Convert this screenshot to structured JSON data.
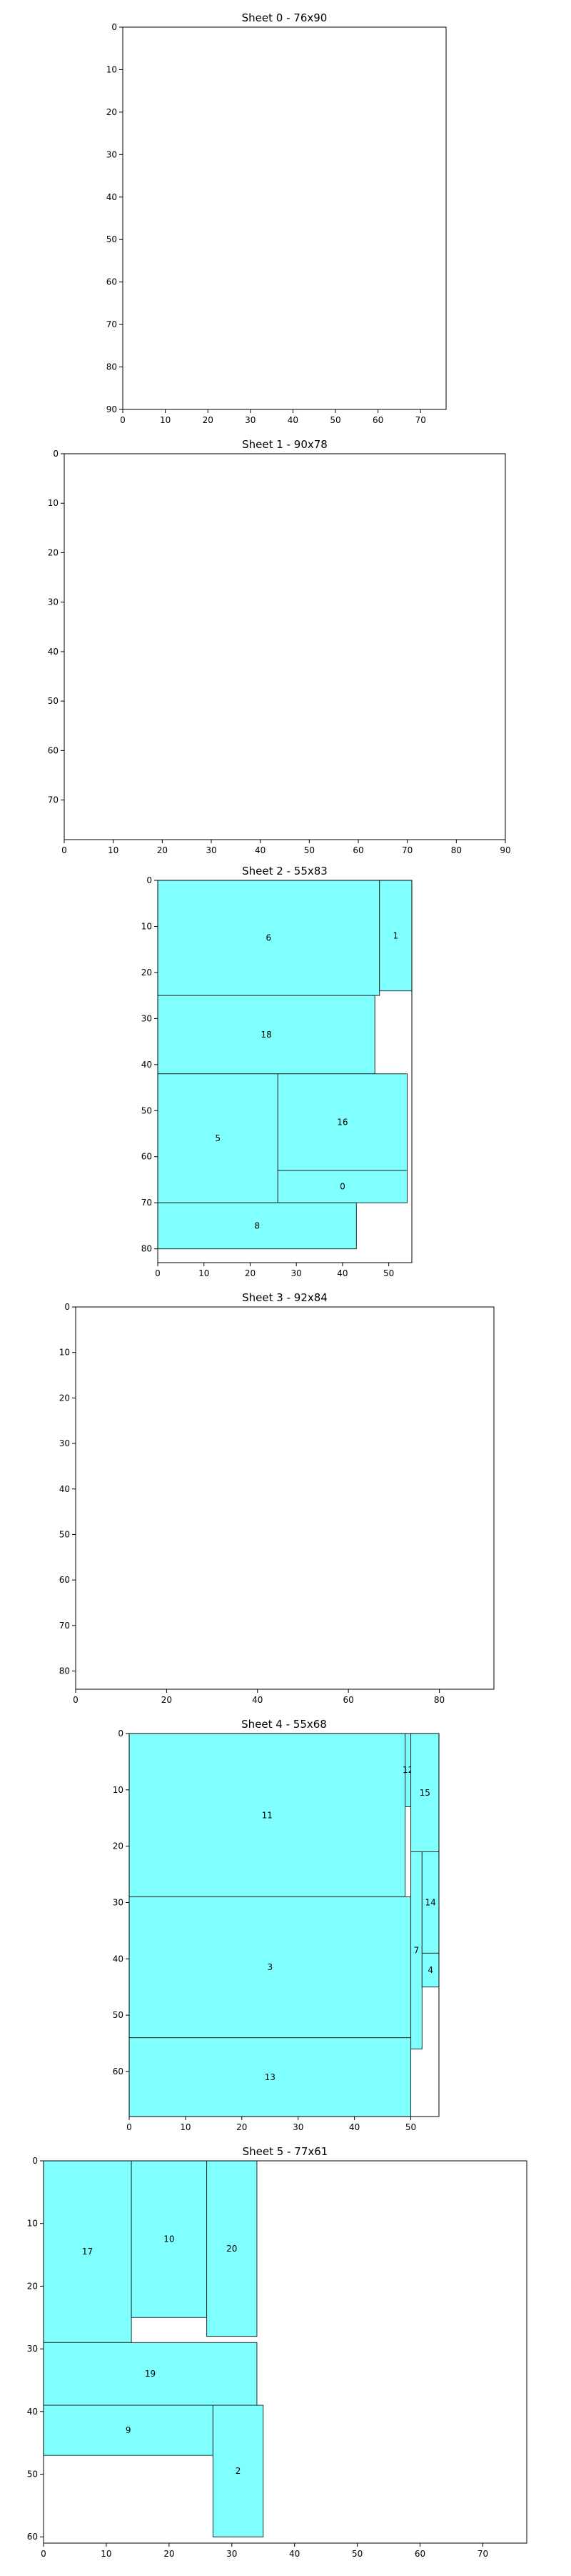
{
  "chart_data": [
    {
      "type": "rect-packing",
      "title": "Sheet 0 - 76x90",
      "sheet": {
        "width": 76,
        "height": 90
      },
      "xlim": [
        0,
        76
      ],
      "ylim": [
        0,
        90
      ],
      "y_inverted": true,
      "xticks": [
        0,
        10,
        20,
        30,
        40,
        50,
        60,
        70
      ],
      "yticks": [
        0,
        10,
        20,
        30,
        40,
        50,
        60,
        70,
        80,
        90
      ],
      "pieces": []
    },
    {
      "type": "rect-packing",
      "title": "Sheet 1 - 90x78",
      "sheet": {
        "width": 90,
        "height": 78
      },
      "xlim": [
        0,
        90
      ],
      "ylim": [
        0,
        78
      ],
      "y_inverted": true,
      "xticks": [
        0,
        10,
        20,
        30,
        40,
        50,
        60,
        70,
        80,
        90
      ],
      "yticks": [
        0,
        10,
        20,
        30,
        40,
        50,
        60,
        70
      ],
      "pieces": []
    },
    {
      "type": "rect-packing",
      "title": "Sheet 2 - 55x83",
      "sheet": {
        "width": 55,
        "height": 83
      },
      "xlim": [
        0,
        55
      ],
      "ylim": [
        0,
        83
      ],
      "y_inverted": true,
      "xticks": [
        0,
        10,
        20,
        30,
        40,
        50
      ],
      "yticks": [
        0,
        10,
        20,
        30,
        40,
        50,
        60,
        70,
        80
      ],
      "pieces": [
        {
          "id": "6",
          "x": 0,
          "y": 0,
          "w": 48,
          "h": 25
        },
        {
          "id": "1",
          "x": 48,
          "y": 0,
          "w": 7,
          "h": 24
        },
        {
          "id": "18",
          "x": 0,
          "y": 25,
          "w": 47,
          "h": 17
        },
        {
          "id": "5",
          "x": 0,
          "y": 42,
          "w": 26,
          "h": 28
        },
        {
          "id": "16",
          "x": 26,
          "y": 42,
          "w": 28,
          "h": 21
        },
        {
          "id": "0",
          "x": 26,
          "y": 63,
          "w": 28,
          "h": 7
        },
        {
          "id": "8",
          "x": 0,
          "y": 70,
          "w": 43,
          "h": 10
        }
      ]
    },
    {
      "type": "rect-packing",
      "title": "Sheet 3 - 92x84",
      "sheet": {
        "width": 92,
        "height": 84
      },
      "xlim": [
        0,
        92
      ],
      "ylim": [
        0,
        84
      ],
      "y_inverted": true,
      "xticks": [
        0,
        20,
        40,
        60,
        80
      ],
      "yticks": [
        0,
        10,
        20,
        30,
        40,
        50,
        60,
        70,
        80
      ],
      "pieces": []
    },
    {
      "type": "rect-packing",
      "title": "Sheet 4 - 55x68",
      "sheet": {
        "width": 55,
        "height": 68
      },
      "xlim": [
        0,
        55
      ],
      "ylim": [
        0,
        68
      ],
      "y_inverted": true,
      "xticks": [
        0,
        10,
        20,
        30,
        40,
        50
      ],
      "yticks": [
        0,
        10,
        20,
        30,
        40,
        50,
        60
      ],
      "pieces": [
        {
          "id": "11",
          "x": 0,
          "y": 0,
          "w": 49,
          "h": 29
        },
        {
          "id": "12",
          "x": 49,
          "y": 0,
          "w": 1,
          "h": 13
        },
        {
          "id": "15",
          "x": 50,
          "y": 0,
          "w": 5,
          "h": 21
        },
        {
          "id": "3",
          "x": 0,
          "y": 29,
          "w": 50,
          "h": 25
        },
        {
          "id": "7",
          "x": 50,
          "y": 21,
          "w": 2,
          "h": 35
        },
        {
          "id": "14",
          "x": 52,
          "y": 21,
          "w": 3,
          "h": 18
        },
        {
          "id": "4",
          "x": 52,
          "y": 39,
          "w": 3,
          "h": 6
        },
        {
          "id": "13",
          "x": 0,
          "y": 54,
          "w": 50,
          "h": 14
        }
      ]
    },
    {
      "type": "rect-packing",
      "title": "Sheet 5 - 77x61",
      "sheet": {
        "width": 77,
        "height": 61
      },
      "xlim": [
        0,
        77
      ],
      "ylim": [
        0,
        61
      ],
      "y_inverted": true,
      "xticks": [
        0,
        10,
        20,
        30,
        40,
        50,
        60,
        70
      ],
      "yticks": [
        0,
        10,
        20,
        30,
        40,
        50,
        60
      ],
      "pieces": [
        {
          "id": "17",
          "x": 0,
          "y": 0,
          "w": 14,
          "h": 29
        },
        {
          "id": "10",
          "x": 14,
          "y": 0,
          "w": 12,
          "h": 25
        },
        {
          "id": "20",
          "x": 26,
          "y": 0,
          "w": 8,
          "h": 28
        },
        {
          "id": "19",
          "x": 0,
          "y": 29,
          "w": 34,
          "h": 10
        },
        {
          "id": "9",
          "x": 0,
          "y": 39,
          "w": 27,
          "h": 8
        },
        {
          "id": "2",
          "x": 27,
          "y": 39,
          "w": 8,
          "h": 21
        }
      ]
    }
  ],
  "colors": {
    "piece_fill": "#80ffff",
    "piece_stroke": "#1f2f2f",
    "frame": "#000000",
    "background": "#ffffff"
  }
}
